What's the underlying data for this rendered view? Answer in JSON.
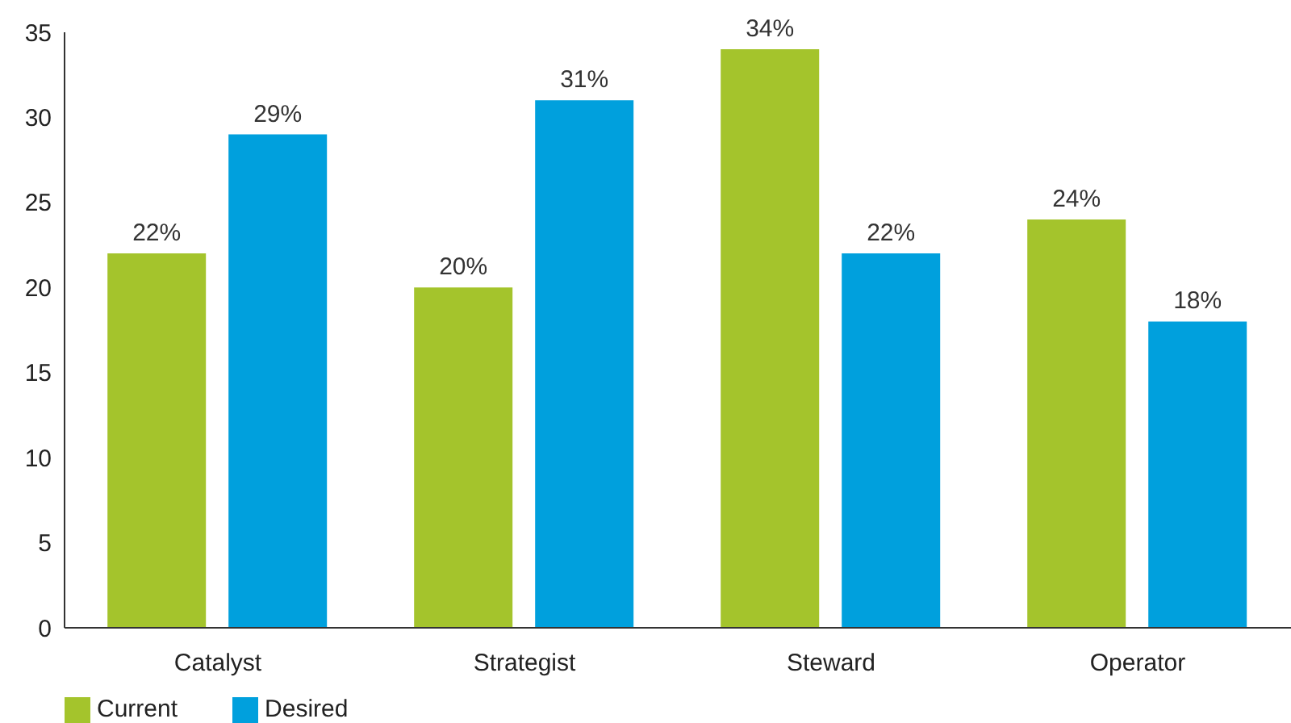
{
  "chart_data": {
    "type": "bar",
    "categories": [
      "Catalyst",
      "Strategist",
      "Steward",
      "Operator"
    ],
    "series": [
      {
        "name": "Current",
        "color": "#a4c42c",
        "values": [
          22,
          20,
          34,
          24
        ],
        "value_labels": [
          "22%",
          "20%",
          "34%",
          "24%"
        ]
      },
      {
        "name": "Desired",
        "color": "#00a0dd",
        "values": [
          29,
          31,
          22,
          18
        ],
        "value_labels": [
          "29%",
          "31%",
          "22%",
          "18%"
        ]
      }
    ],
    "ylim": [
      0,
      35
    ],
    "yticks": [
      0,
      5,
      10,
      15,
      20,
      25,
      30,
      35
    ],
    "grid": false,
    "legend": "bottom left"
  }
}
